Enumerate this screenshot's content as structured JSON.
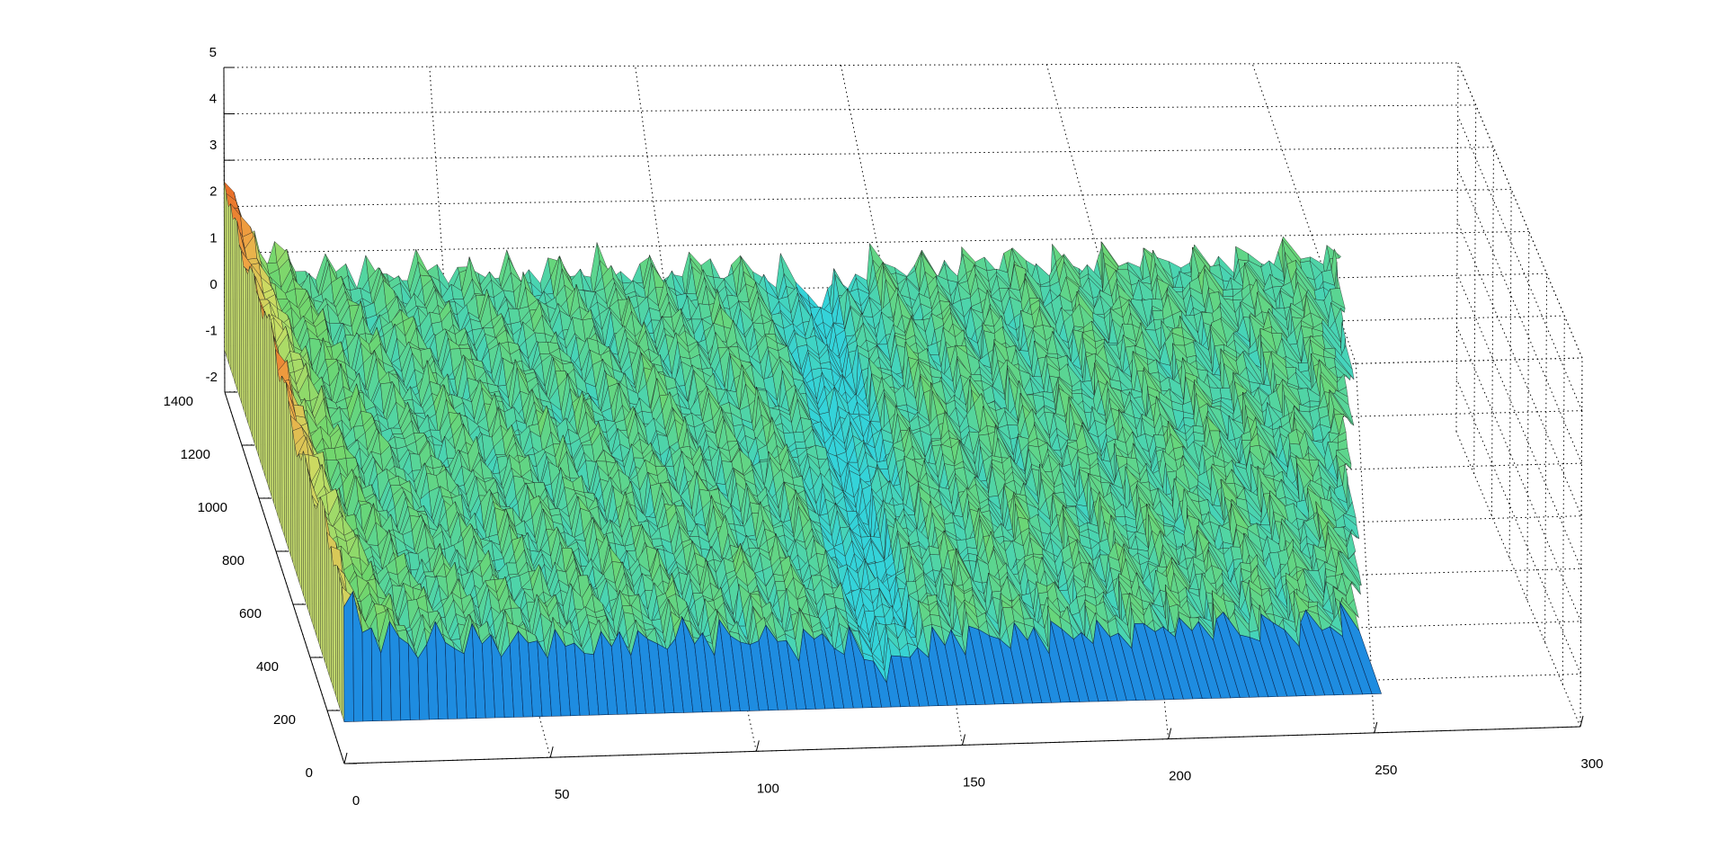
{
  "chart_data": {
    "type": "surface",
    "title": "",
    "xlabel": "",
    "ylabel": "",
    "zlabel": "",
    "xlim": [
      0,
      300
    ],
    "ylim": [
      0,
      1400
    ],
    "zlim": [
      -2,
      5
    ],
    "grid": true,
    "colormap": "jet",
    "x_ticks": [
      "0",
      "50",
      "100",
      "150",
      "200",
      "250",
      "300"
    ],
    "y_ticks": [
      "0",
      "200",
      "400",
      "600",
      "800",
      "1000",
      "1200",
      "1400"
    ],
    "z_ticks": [
      "-2",
      "-1",
      "0",
      "1",
      "2",
      "3",
      "4",
      "5"
    ],
    "surface_extent": {
      "x": [
        0,
        255
      ],
      "y": [
        0,
        1400
      ]
    },
    "surface_description_values": {
      "baseline_z": 0.5,
      "front_edge_base_z": -1.1,
      "peak_z": 2.6,
      "peak_location": {
        "x": 0,
        "y": 1400
      },
      "valley_location_x": 135
    },
    "colors": {
      "side_face": "#1e8ce0",
      "high": "#e8792a",
      "mid": "#9bd86a",
      "low": "#34d3d9"
    }
  }
}
